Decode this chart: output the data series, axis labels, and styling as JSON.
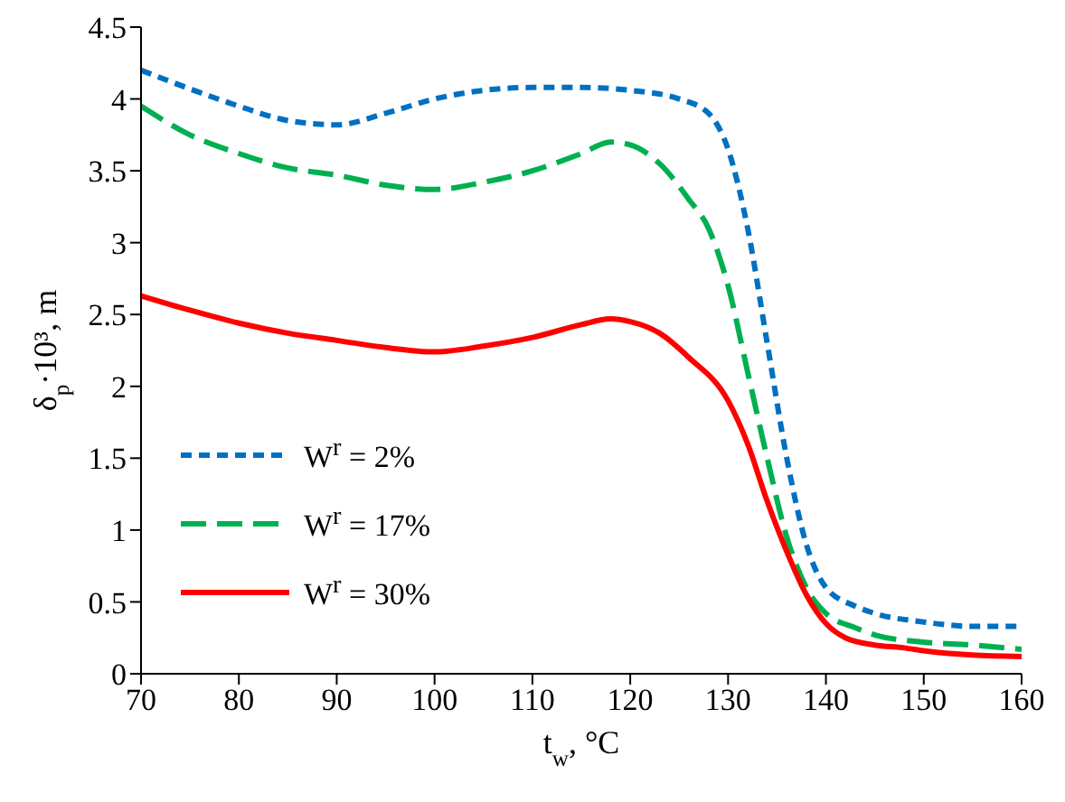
{
  "chart_data": {
    "type": "line",
    "xlabel": "t$_{w}$, °C",
    "ylabel": "δ$_{p}$·10³, m",
    "xlim": [
      70,
      160
    ],
    "xticks": [
      70,
      80,
      90,
      100,
      110,
      120,
      130,
      140,
      150,
      160
    ],
    "ylim": [
      0,
      4.5
    ],
    "yticks": [
      0,
      0.5,
      1,
      1.5,
      2,
      2.5,
      3,
      3.5,
      4,
      4.5
    ],
    "grid": false,
    "legend": "bottom left",
    "marker": "none",
    "series": [
      {
        "name": "W$^{r}$ = 2%",
        "color": "#0070c0",
        "line_style": "dotted",
        "x": [
          70,
          75,
          80,
          85,
          90,
          95,
          100,
          105,
          110,
          115,
          120,
          125,
          128,
          130,
          132,
          134,
          136,
          138,
          140,
          143,
          145,
          150,
          155,
          160
        ],
        "values": [
          4.2,
          4.07,
          3.95,
          3.85,
          3.82,
          3.9,
          4.0,
          4.06,
          4.08,
          4.08,
          4.06,
          4.0,
          3.9,
          3.65,
          3.1,
          2.3,
          1.5,
          0.9,
          0.6,
          0.47,
          0.42,
          0.36,
          0.33,
          0.33
        ]
      },
      {
        "name": "W$^{r}$ = 17%",
        "color": "#00b050",
        "line_style": "dashed",
        "x": [
          70,
          75,
          80,
          85,
          90,
          95,
          100,
          105,
          110,
          115,
          118,
          120,
          123,
          126,
          128,
          130,
          132,
          134,
          136,
          138,
          140,
          143,
          145,
          150,
          155,
          160
        ],
        "values": [
          3.95,
          3.75,
          3.62,
          3.52,
          3.47,
          3.4,
          3.37,
          3.42,
          3.5,
          3.62,
          3.7,
          3.68,
          3.55,
          3.3,
          3.1,
          2.7,
          2.1,
          1.5,
          0.95,
          0.6,
          0.42,
          0.32,
          0.27,
          0.22,
          0.2,
          0.17
        ]
      },
      {
        "name": "W$^{r}$ = 30%",
        "color": "#ff0000",
        "line_style": "solid",
        "x": [
          70,
          75,
          80,
          85,
          90,
          95,
          100,
          105,
          110,
          115,
          118,
          120,
          123,
          126,
          130,
          132,
          134,
          136,
          138,
          140,
          142,
          145,
          148,
          150,
          155,
          160
        ],
        "values": [
          2.63,
          2.53,
          2.44,
          2.37,
          2.32,
          2.27,
          2.24,
          2.28,
          2.34,
          2.43,
          2.47,
          2.45,
          2.37,
          2.2,
          1.9,
          1.6,
          1.2,
          0.85,
          0.55,
          0.35,
          0.25,
          0.2,
          0.18,
          0.16,
          0.13,
          0.12
        ]
      }
    ]
  }
}
